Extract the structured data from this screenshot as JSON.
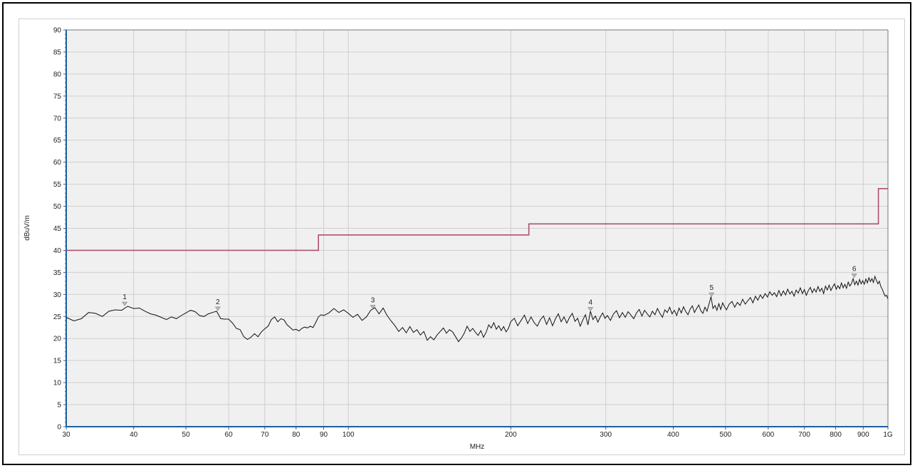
{
  "chart_data": {
    "type": "line",
    "title": "",
    "xlabel": "MHz",
    "ylabel": "dBuV/m",
    "xscale": "log",
    "xlim": [
      30,
      1000
    ],
    "ylim": [
      0,
      90
    ],
    "grid": true,
    "y_ticks": [
      0,
      5,
      10,
      15,
      20,
      25,
      30,
      35,
      40,
      45,
      50,
      55,
      60,
      65,
      70,
      75,
      80,
      85,
      90
    ],
    "x_ticks": [
      {
        "value": 30,
        "label": "30"
      },
      {
        "value": 40,
        "label": "40"
      },
      {
        "value": 50,
        "label": "50"
      },
      {
        "value": 60,
        "label": "60"
      },
      {
        "value": 70,
        "label": "70"
      },
      {
        "value": 80,
        "label": "80"
      },
      {
        "value": 90,
        "label": "90"
      },
      {
        "value": 100,
        "label": "100"
      },
      {
        "value": 200,
        "label": "200"
      },
      {
        "value": 300,
        "label": "300"
      },
      {
        "value": 400,
        "label": "400"
      },
      {
        "value": 500,
        "label": "500"
      },
      {
        "value": 600,
        "label": "600"
      },
      {
        "value": 700,
        "label": "700"
      },
      {
        "value": 800,
        "label": "800"
      },
      {
        "value": 900,
        "label": "900"
      },
      {
        "value": 1000,
        "label": "1G"
      }
    ],
    "limit_line": {
      "color": "#b0506e",
      "points": [
        [
          30,
          40
        ],
        [
          88,
          40
        ],
        [
          88,
          43.5
        ],
        [
          216,
          43.5
        ],
        [
          216,
          46
        ],
        [
          960,
          46
        ],
        [
          960,
          54
        ],
        [
          1000,
          54
        ]
      ]
    },
    "trace": {
      "color": "#111111",
      "points": [
        [
          30,
          24.8
        ],
        [
          31,
          24.0
        ],
        [
          32,
          24.5
        ],
        [
          33,
          25.9
        ],
        [
          34,
          25.7
        ],
        [
          35,
          25.0
        ],
        [
          36,
          26.2
        ],
        [
          37,
          26.5
        ],
        [
          38,
          26.4
        ],
        [
          39,
          27.3
        ],
        [
          40,
          26.8
        ],
        [
          41,
          26.9
        ],
        [
          42,
          26.2
        ],
        [
          43,
          25.6
        ],
        [
          44,
          25.3
        ],
        [
          45,
          24.8
        ],
        [
          46,
          24.3
        ],
        [
          47,
          24.9
        ],
        [
          48,
          24.5
        ],
        [
          49,
          25.2
        ],
        [
          50,
          25.8
        ],
        [
          51,
          26.4
        ],
        [
          52,
          26.1
        ],
        [
          53,
          25.2
        ],
        [
          54,
          25.0
        ],
        [
          55,
          25.6
        ],
        [
          56,
          25.9
        ],
        [
          57,
          26.2
        ],
        [
          58,
          24.5
        ],
        [
          59,
          24.4
        ],
        [
          60,
          24.4
        ],
        [
          61,
          23.5
        ],
        [
          62,
          22.3
        ],
        [
          63,
          22.0
        ],
        [
          64,
          20.4
        ],
        [
          65,
          19.8
        ],
        [
          66,
          20.3
        ],
        [
          67,
          21.1
        ],
        [
          68,
          20.4
        ],
        [
          69,
          21.5
        ],
        [
          70,
          22.2
        ],
        [
          71,
          22.8
        ],
        [
          72,
          24.3
        ],
        [
          73,
          24.9
        ],
        [
          74,
          23.8
        ],
        [
          75,
          24.5
        ],
        [
          76,
          24.2
        ],
        [
          77,
          23.1
        ],
        [
          78,
          22.5
        ],
        [
          79,
          21.9
        ],
        [
          80,
          22.1
        ],
        [
          81,
          21.7
        ],
        [
          82,
          22.3
        ],
        [
          83,
          22.6
        ],
        [
          84,
          22.4
        ],
        [
          85,
          22.8
        ],
        [
          86,
          22.5
        ],
        [
          87,
          23.6
        ],
        [
          88,
          24.9
        ],
        [
          89,
          25.4
        ],
        [
          90,
          25.2
        ],
        [
          92,
          25.8
        ],
        [
          94,
          26.8
        ],
        [
          96,
          25.9
        ],
        [
          98,
          26.5
        ],
        [
          100,
          25.7
        ],
        [
          102,
          24.8
        ],
        [
          104,
          25.5
        ],
        [
          106,
          24.1
        ],
        [
          108,
          24.9
        ],
        [
          110,
          26.4
        ],
        [
          112,
          27.0
        ],
        [
          114,
          25.6
        ],
        [
          116,
          26.9
        ],
        [
          118,
          25.2
        ],
        [
          120,
          24.0
        ],
        [
          122,
          22.9
        ],
        [
          124,
          21.6
        ],
        [
          126,
          22.5
        ],
        [
          128,
          21.3
        ],
        [
          130,
          22.7
        ],
        [
          132,
          21.4
        ],
        [
          134,
          22.0
        ],
        [
          136,
          20.8
        ],
        [
          138,
          21.6
        ],
        [
          140,
          19.6
        ],
        [
          142,
          20.4
        ],
        [
          144,
          19.7
        ],
        [
          146,
          20.8
        ],
        [
          148,
          21.6
        ],
        [
          150,
          22.4
        ],
        [
          152,
          21.2
        ],
        [
          154,
          22.0
        ],
        [
          156,
          21.5
        ],
        [
          158,
          20.4
        ],
        [
          160,
          19.3
        ],
        [
          162,
          20.1
        ],
        [
          164,
          21.2
        ],
        [
          166,
          22.8
        ],
        [
          168,
          21.6
        ],
        [
          170,
          22.3
        ],
        [
          172,
          21.4
        ],
        [
          174,
          20.7
        ],
        [
          176,
          21.8
        ],
        [
          178,
          20.3
        ],
        [
          180,
          21.4
        ],
        [
          182,
          23.1
        ],
        [
          184,
          22.4
        ],
        [
          186,
          23.6
        ],
        [
          188,
          22.1
        ],
        [
          190,
          22.9
        ],
        [
          192,
          21.8
        ],
        [
          194,
          22.7
        ],
        [
          196,
          21.5
        ],
        [
          198,
          22.3
        ],
        [
          200,
          23.8
        ],
        [
          203,
          24.6
        ],
        [
          206,
          22.9
        ],
        [
          209,
          24.1
        ],
        [
          212,
          25.3
        ],
        [
          215,
          23.4
        ],
        [
          218,
          24.9
        ],
        [
          221,
          23.6
        ],
        [
          224,
          22.8
        ],
        [
          227,
          24.3
        ],
        [
          230,
          25.1
        ],
        [
          233,
          23.2
        ],
        [
          236,
          24.7
        ],
        [
          239,
          22.9
        ],
        [
          242,
          24.5
        ],
        [
          245,
          25.6
        ],
        [
          248,
          23.8
        ],
        [
          251,
          24.9
        ],
        [
          254,
          23.5
        ],
        [
          257,
          24.8
        ],
        [
          260,
          25.7
        ],
        [
          263,
          23.9
        ],
        [
          266,
          24.6
        ],
        [
          269,
          22.8
        ],
        [
          272,
          24.2
        ],
        [
          275,
          25.4
        ],
        [
          278,
          23.1
        ],
        [
          281,
          26.2
        ],
        [
          284,
          24.3
        ],
        [
          287,
          25.1
        ],
        [
          290,
          23.7
        ],
        [
          293,
          24.9
        ],
        [
          296,
          25.8
        ],
        [
          299,
          24.6
        ],
        [
          302,
          25.2
        ],
        [
          306,
          24.1
        ],
        [
          310,
          25.6
        ],
        [
          314,
          26.3
        ],
        [
          318,
          24.7
        ],
        [
          322,
          25.9
        ],
        [
          326,
          24.8
        ],
        [
          330,
          26.1
        ],
        [
          334,
          25.3
        ],
        [
          338,
          24.5
        ],
        [
          342,
          25.8
        ],
        [
          346,
          26.6
        ],
        [
          350,
          25.1
        ],
        [
          354,
          26.4
        ],
        [
          358,
          25.6
        ],
        [
          362,
          24.9
        ],
        [
          366,
          26.2
        ],
        [
          370,
          25.4
        ],
        [
          374,
          26.8
        ],
        [
          378,
          25.7
        ],
        [
          382,
          24.8
        ],
        [
          386,
          26.5
        ],
        [
          390,
          25.9
        ],
        [
          394,
          27.1
        ],
        [
          398,
          25.6
        ],
        [
          402,
          26.4
        ],
        [
          406,
          25.2
        ],
        [
          410,
          26.9
        ],
        [
          414,
          25.8
        ],
        [
          418,
          27.2
        ],
        [
          422,
          26.1
        ],
        [
          426,
          25.4
        ],
        [
          430,
          26.7
        ],
        [
          434,
          27.4
        ],
        [
          438,
          25.9
        ],
        [
          442,
          26.8
        ],
        [
          446,
          27.6
        ],
        [
          450,
          26.3
        ],
        [
          454,
          25.7
        ],
        [
          458,
          27.1
        ],
        [
          462,
          26.2
        ],
        [
          466,
          27.8
        ],
        [
          470,
          29.5
        ],
        [
          474,
          26.8
        ],
        [
          478,
          27.5
        ],
        [
          482,
          26.4
        ],
        [
          486,
          27.9
        ],
        [
          490,
          26.6
        ],
        [
          494,
          28.1
        ],
        [
          498,
          27.2
        ],
        [
          502,
          26.5
        ],
        [
          508,
          27.8
        ],
        [
          514,
          28.4
        ],
        [
          520,
          27.1
        ],
        [
          526,
          28.2
        ],
        [
          532,
          27.5
        ],
        [
          538,
          28.9
        ],
        [
          544,
          27.8
        ],
        [
          550,
          28.6
        ],
        [
          556,
          29.3
        ],
        [
          562,
          28.1
        ],
        [
          568,
          29.6
        ],
        [
          574,
          28.7
        ],
        [
          580,
          29.9
        ],
        [
          586,
          29.1
        ],
        [
          592,
          30.2
        ],
        [
          598,
          29.4
        ],
        [
          604,
          30.6
        ],
        [
          610,
          29.8
        ],
        [
          616,
          30.4
        ],
        [
          622,
          29.5
        ],
        [
          628,
          30.9
        ],
        [
          634,
          29.7
        ],
        [
          640,
          30.8
        ],
        [
          646,
          29.9
        ],
        [
          652,
          31.2
        ],
        [
          658,
          30.1
        ],
        [
          664,
          30.7
        ],
        [
          670,
          29.6
        ],
        [
          676,
          31.0
        ],
        [
          682,
          30.3
        ],
        [
          688,
          31.5
        ],
        [
          694,
          30.2
        ],
        [
          700,
          31.1
        ],
        [
          706,
          29.8
        ],
        [
          712,
          30.9
        ],
        [
          718,
          31.6
        ],
        [
          724,
          30.4
        ],
        [
          730,
          31.3
        ],
        [
          736,
          30.5
        ],
        [
          742,
          31.8
        ],
        [
          748,
          30.7
        ],
        [
          754,
          31.4
        ],
        [
          760,
          30.2
        ],
        [
          766,
          31.9
        ],
        [
          772,
          31.0
        ],
        [
          778,
          32.1
        ],
        [
          784,
          30.9
        ],
        [
          790,
          31.7
        ],
        [
          796,
          32.4
        ],
        [
          802,
          31.2
        ],
        [
          808,
          32.0
        ],
        [
          814,
          31.3
        ],
        [
          820,
          32.6
        ],
        [
          826,
          31.5
        ],
        [
          832,
          32.3
        ],
        [
          838,
          31.4
        ],
        [
          844,
          32.8
        ],
        [
          850,
          31.9
        ],
        [
          856,
          32.5
        ],
        [
          862,
          33.6
        ],
        [
          868,
          32.2
        ],
        [
          874,
          33.0
        ],
        [
          880,
          32.1
        ],
        [
          886,
          33.4
        ],
        [
          892,
          32.4
        ],
        [
          898,
          33.1
        ],
        [
          904,
          32.3
        ],
        [
          910,
          33.5
        ],
        [
          916,
          32.6
        ],
        [
          922,
          33.8
        ],
        [
          928,
          32.9
        ],
        [
          934,
          33.6
        ],
        [
          940,
          32.7
        ],
        [
          946,
          34.1
        ],
        [
          952,
          33.2
        ],
        [
          958,
          32.4
        ],
        [
          964,
          33.0
        ],
        [
          970,
          31.8
        ],
        [
          976,
          31.2
        ],
        [
          982,
          30.4
        ],
        [
          988,
          29.6
        ],
        [
          994,
          29.8
        ],
        [
          1000,
          29.0
        ]
      ]
    },
    "markers": [
      {
        "label": "1",
        "x": 38.5,
        "y": 27.3
      },
      {
        "label": "2",
        "x": 57.3,
        "y": 26.2
      },
      {
        "label": "3",
        "x": 111,
        "y": 26.6
      },
      {
        "label": "4",
        "x": 281,
        "y": 26.1
      },
      {
        "label": "5",
        "x": 471,
        "y": 29.4
      },
      {
        "label": "6",
        "x": 866,
        "y": 33.7
      }
    ]
  }
}
